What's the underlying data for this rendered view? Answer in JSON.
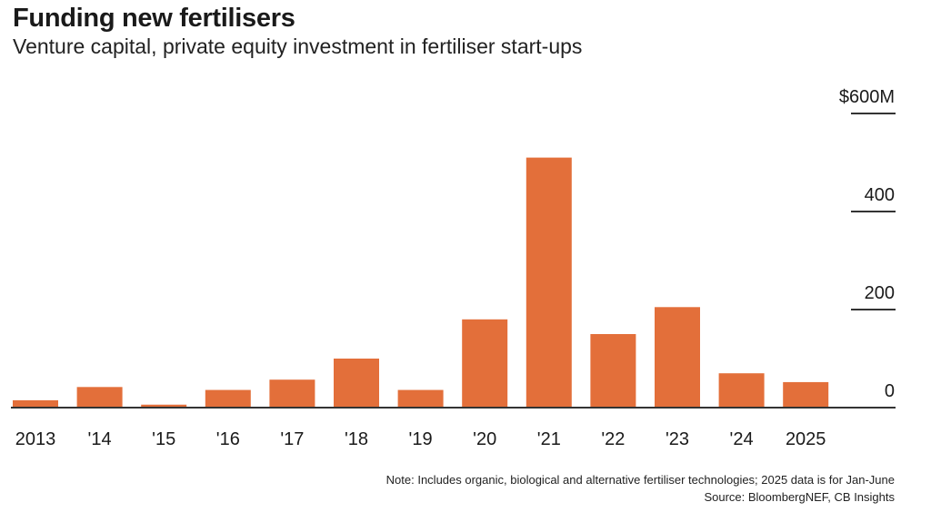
{
  "header": {
    "title": "Funding new fertilisers",
    "subtitle": "Venture capital, private equity investment in fertiliser start-ups"
  },
  "footer": {
    "note": "Note: Includes organic, biological and alternative fertiliser technologies; 2025 data is for Jan-June",
    "source": "Source: BloombergNEF, CB Insights"
  },
  "colors": {
    "bar": "#e36f3a",
    "axis": "#333333",
    "text": "#1a1a1a"
  },
  "chart_data": {
    "type": "bar",
    "title": "Funding new fertilisers",
    "subtitle": "Venture capital, private equity investment in fertiliser start-ups",
    "categories": [
      "2013",
      "'14",
      "'15",
      "'16",
      "'17",
      "'18",
      "'19",
      "'20",
      "'21",
      "'22",
      "'23",
      "'24",
      "2025"
    ],
    "values": [
      15,
      42,
      6,
      36,
      57,
      100,
      36,
      180,
      510,
      150,
      205,
      70,
      52
    ],
    "unit": "$M",
    "ylim": [
      0,
      600
    ],
    "yticks": [
      {
        "value": 0,
        "label": "0"
      },
      {
        "value": 200,
        "label": "200"
      },
      {
        "value": 400,
        "label": "400"
      },
      {
        "value": 600,
        "label": "$600M"
      }
    ],
    "y_axis_position": "right",
    "grid": false,
    "legend": "none"
  }
}
